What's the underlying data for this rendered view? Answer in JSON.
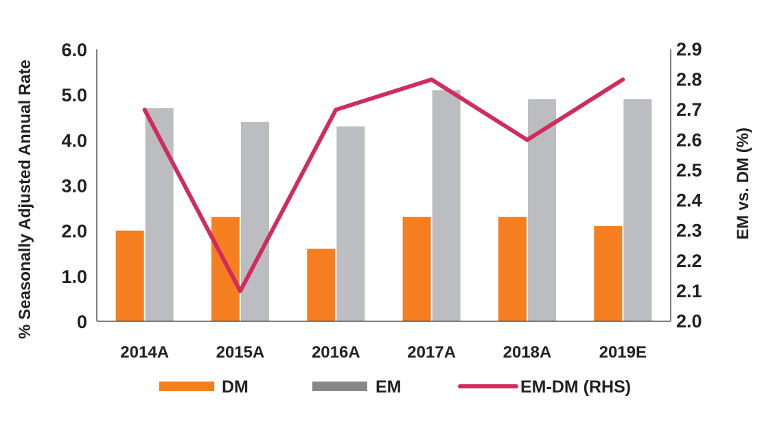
{
  "chart_data": {
    "type": "bar",
    "categories": [
      "2014A",
      "2015A",
      "2016A",
      "2017A",
      "2018A",
      "2019E"
    ],
    "series": [
      {
        "name": "DM",
        "type": "bar",
        "axis": "left",
        "color": "#F47E20",
        "values": [
          2.0,
          2.3,
          1.6,
          2.3,
          2.3,
          2.1
        ]
      },
      {
        "name": "EM",
        "type": "bar",
        "axis": "left",
        "color": "#BCBDC0",
        "values": [
          4.7,
          4.4,
          4.3,
          5.1,
          4.9,
          4.9
        ]
      },
      {
        "name": "EM-DM (RHS)",
        "type": "line",
        "axis": "right",
        "color": "#D02C5E",
        "values": [
          2.7,
          2.1,
          2.7,
          2.8,
          2.6,
          2.8
        ]
      }
    ],
    "ylabel": "% Seasonally Adjusted Annual Rate",
    "y2label": "EM vs. DM (%)",
    "ylim": [
      0,
      6
    ],
    "y2lim": [
      2.0,
      2.9
    ],
    "yticks": [
      "0",
      "1.0",
      "2.0",
      "3.0",
      "4.0",
      "5.0",
      "6.0"
    ],
    "y2ticks": [
      "2.0",
      "2.1",
      "2.2",
      "2.3",
      "2.4",
      "2.5",
      "2.6",
      "2.7",
      "2.8",
      "2.9"
    ],
    "legend": {
      "placement": "bottom",
      "em_swatch_color": "#87888A"
    },
    "grid": false
  }
}
